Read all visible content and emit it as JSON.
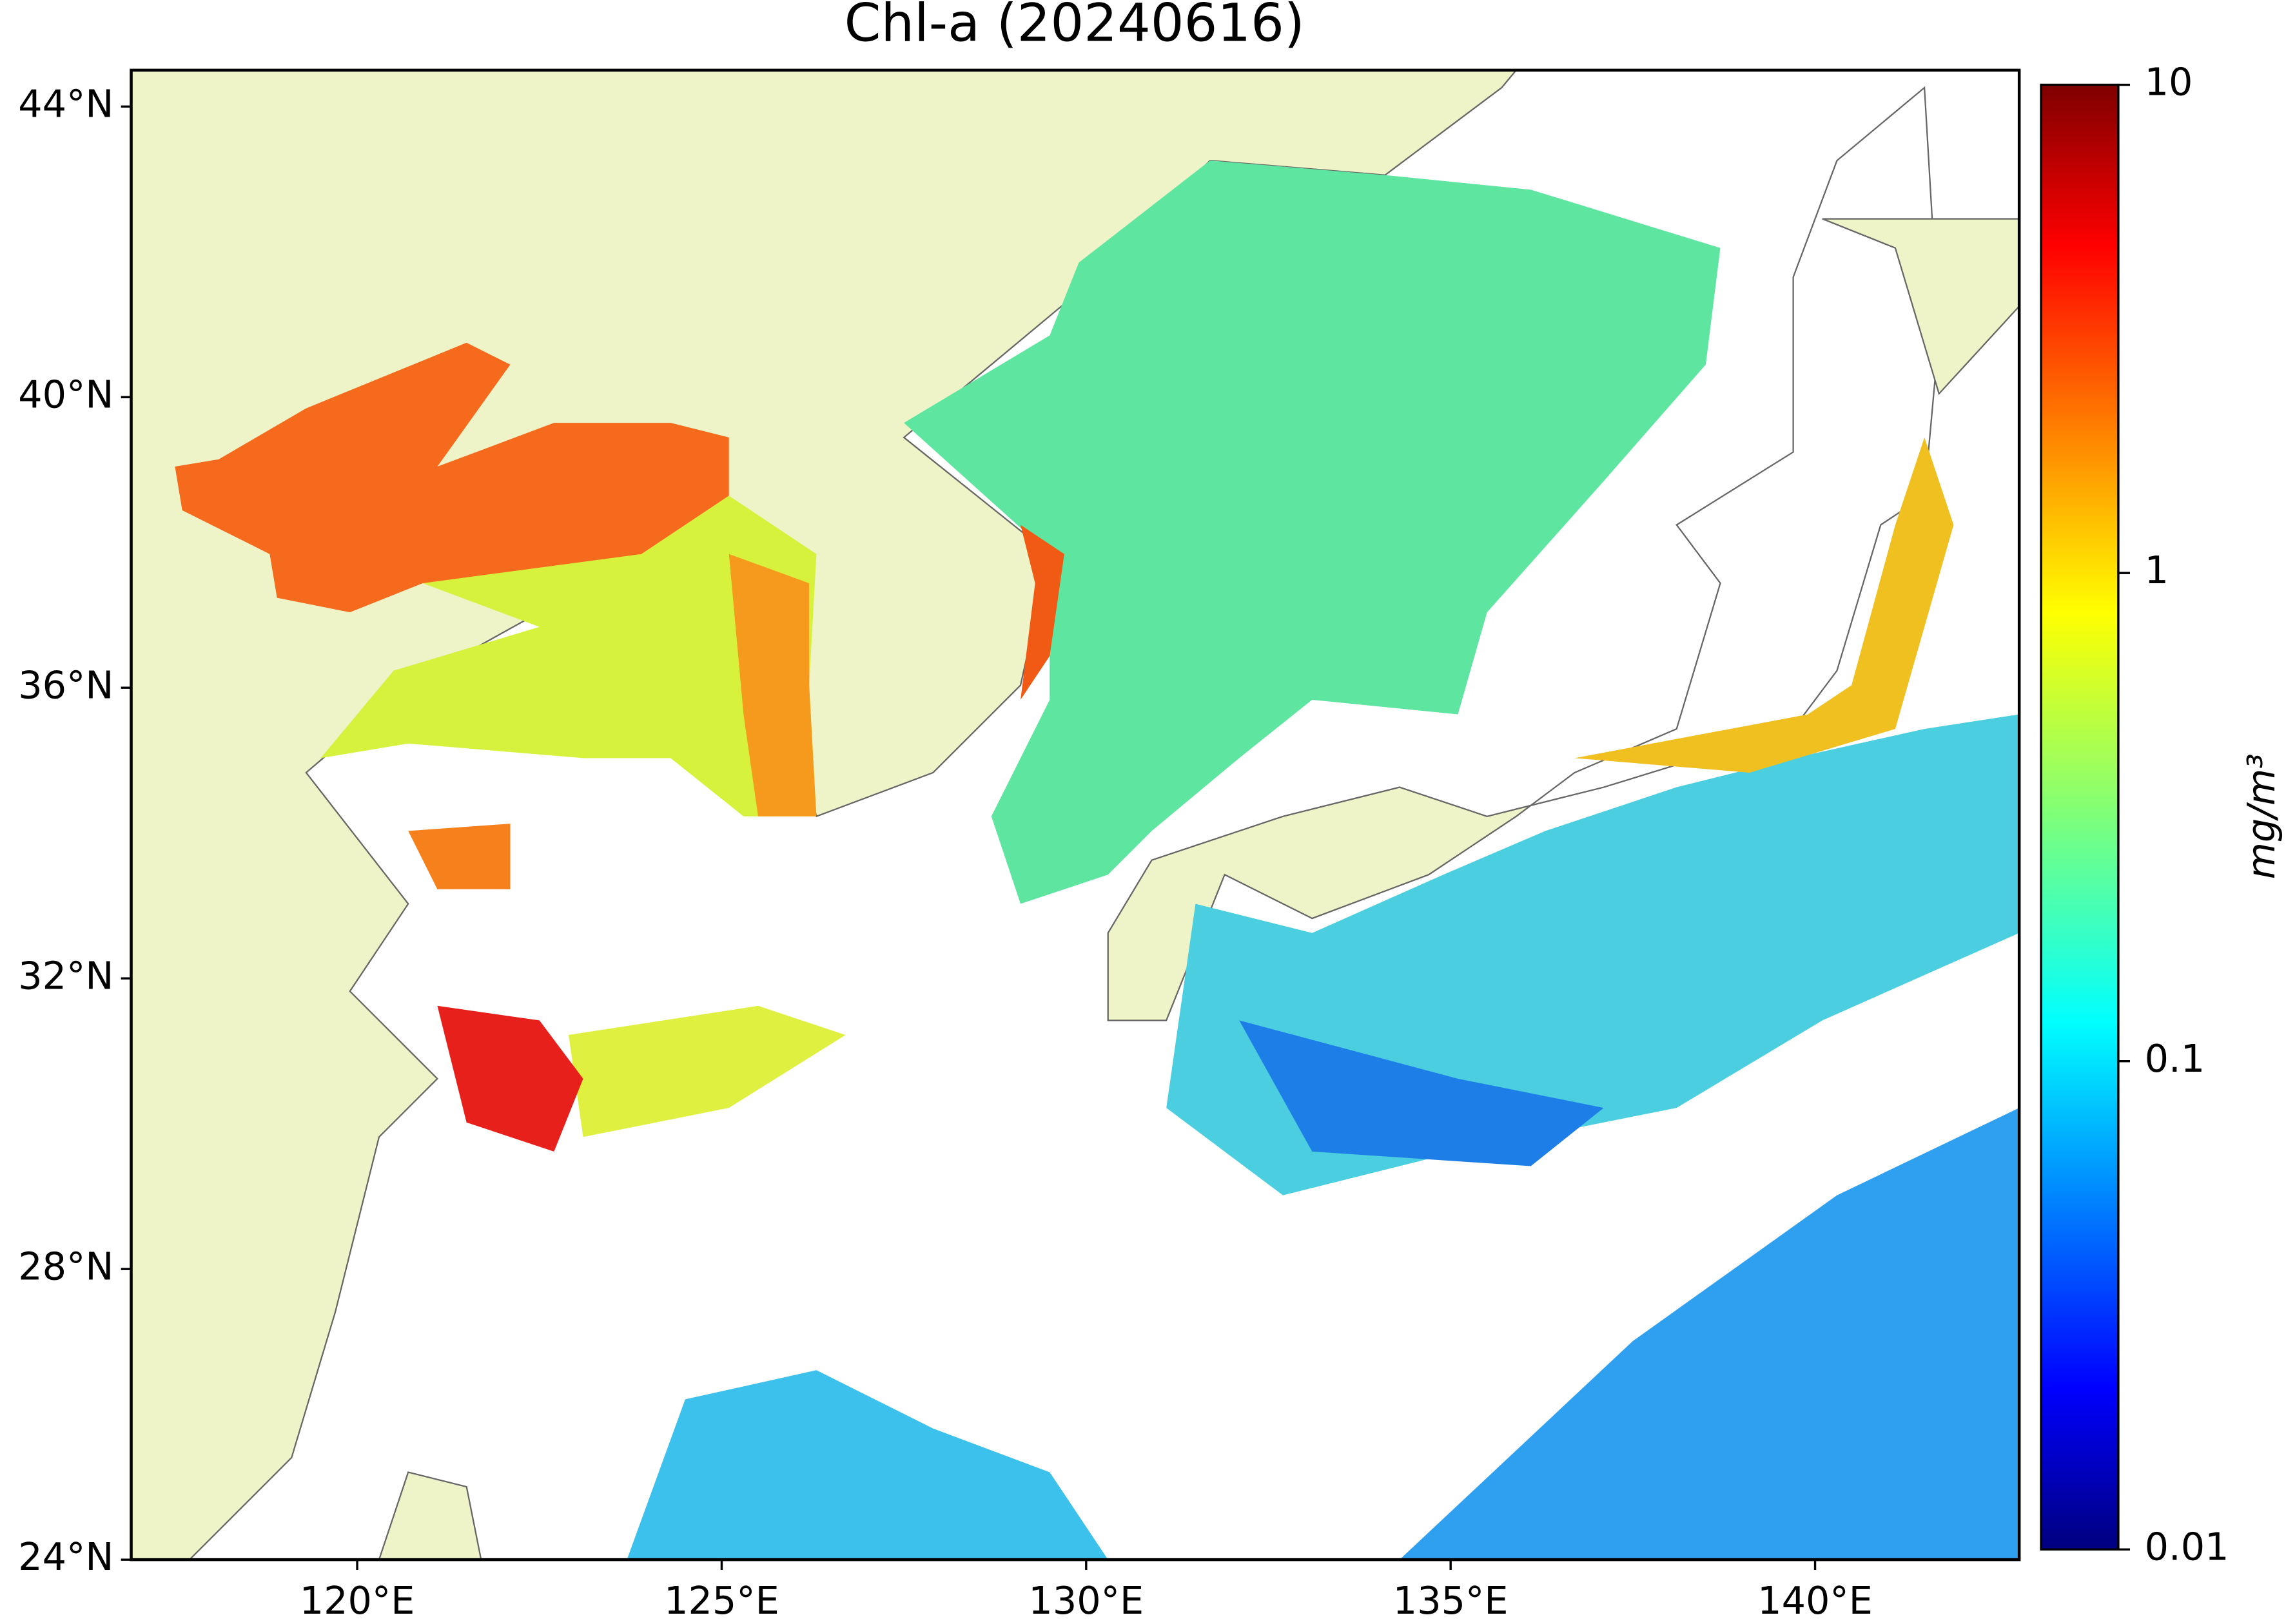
{
  "chart_data": {
    "type": "map",
    "title": "Chl-a (20240616)",
    "xlim": [
      116.9,
      142.8
    ],
    "xticks": [
      {
        "value": 120,
        "label": "120°E"
      },
      {
        "value": 125,
        "label": "125°E"
      },
      {
        "value": 130,
        "label": "130°E"
      },
      {
        "value": 135,
        "label": "135°E"
      },
      {
        "value": 140,
        "label": "140°E"
      }
    ],
    "ylim": [
      24,
      44.5
    ],
    "yticks": [
      {
        "value": 24,
        "label": "24°N"
      },
      {
        "value": 28,
        "label": "28°N"
      },
      {
        "value": 32,
        "label": "32°N"
      },
      {
        "value": 36,
        "label": "36°N"
      },
      {
        "value": 40,
        "label": "40°N"
      },
      {
        "value": 44,
        "label": "44°N"
      }
    ],
    "colorbar": {
      "label": "mg/m³",
      "scale": "log",
      "lim": [
        0.01,
        10
      ],
      "ticks": [
        0.01,
        0.1,
        1,
        10
      ],
      "colormap": "jet"
    }
  }
}
